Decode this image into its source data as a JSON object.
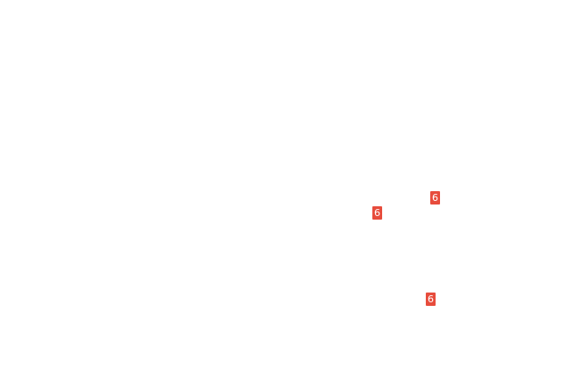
{
  "page": {
    "background_color": "#ffffff"
  },
  "badges": {
    "background_color": "#e74c3c",
    "text_color": "#ffffff",
    "items": [
      {
        "label": "6"
      },
      {
        "label": "6"
      },
      {
        "label": "6"
      }
    ]
  }
}
